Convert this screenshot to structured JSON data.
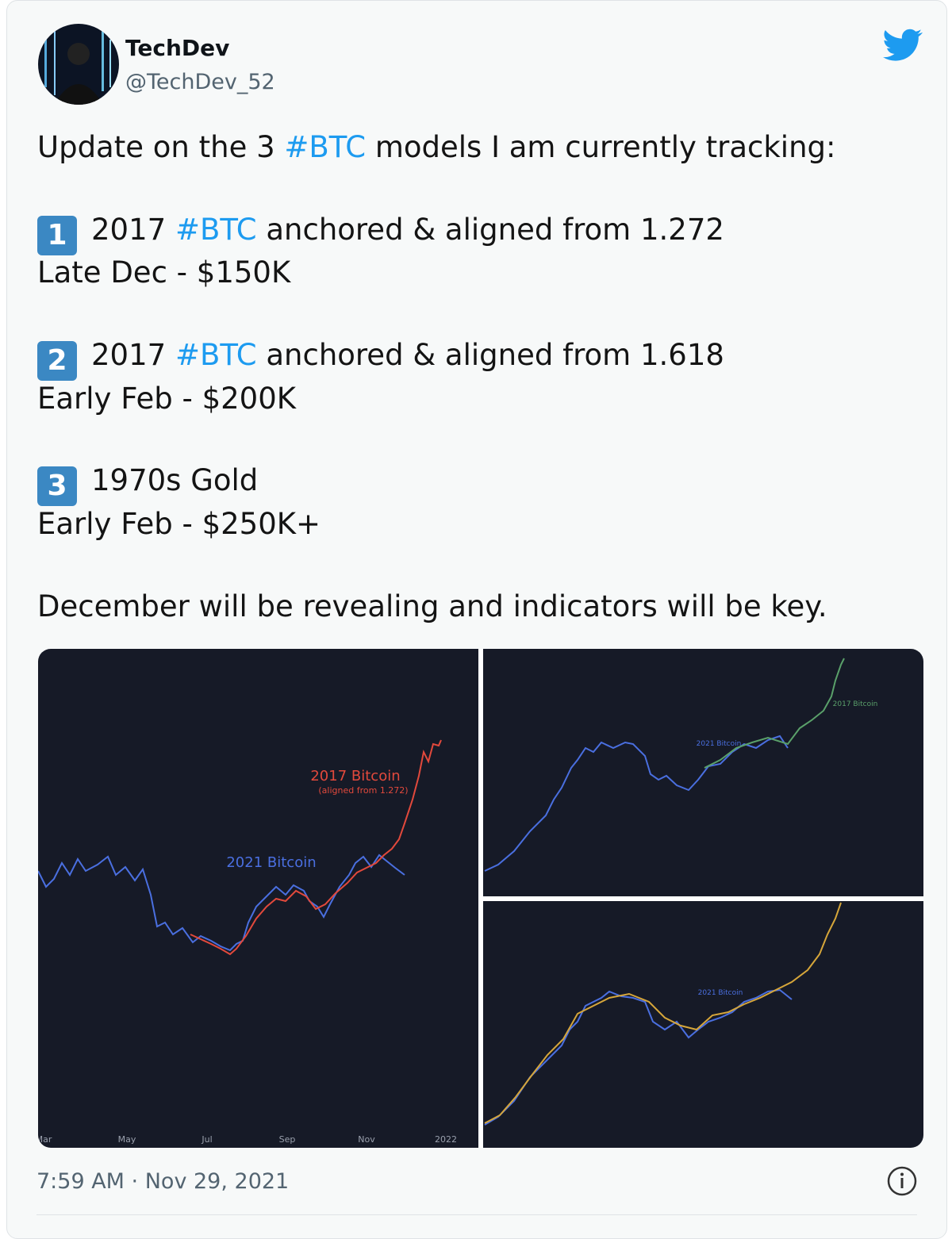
{
  "author": {
    "name": "TechDev",
    "handle": "@TechDev_52"
  },
  "tweet": {
    "intro": {
      "before": "Update on the 3 ",
      "hashtag": "#BTC",
      "after": " models I am currently tracking:"
    },
    "models": [
      {
        "number": "1",
        "before": "2017 ",
        "hashtag": "#BTC",
        "after": " anchored & aligned from 1.272",
        "target": "Late Dec - $150K"
      },
      {
        "number": "2",
        "before": "2017 ",
        "hashtag": "#BTC",
        "after": " anchored & aligned from 1.618",
        "target": "Early Feb - $200K"
      },
      {
        "number": "3",
        "title": "1970s Gold",
        "target": "Early Feb - $250K+"
      }
    ],
    "closing": "December will be revealing and indicators will be key."
  },
  "media": {
    "left": {
      "red_label": "2017 Bitcoin",
      "red_sublabel": "(aligned from 1.272)",
      "blue_label": "2021 Bitcoin",
      "x_labels": [
        "Mar",
        "May",
        "Jul",
        "Sep",
        "Nov",
        "2022"
      ]
    },
    "top_right": {
      "blue_label": "2021 Bitcoin",
      "green_label": "2017 Bitcoin"
    },
    "bottom_right": {
      "blue_label": "2021 Bitcoin"
    }
  },
  "timestamp": "7:59 AM · Nov 29, 2021"
}
